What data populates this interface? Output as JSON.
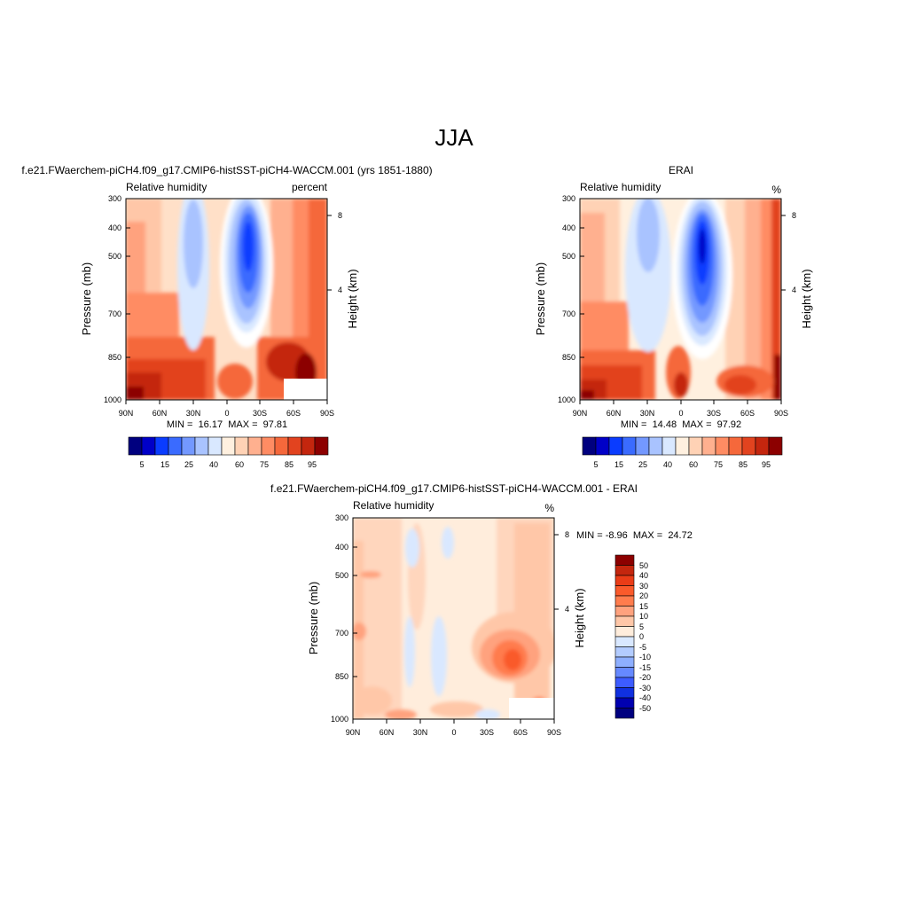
{
  "figure": {
    "title": "JJA"
  },
  "chart_data": [
    {
      "type": "heatmap",
      "title": "f.e21.FWaerchem-piCH4.f09_g17.CMIP6-histSST-piCH4-WACCM.001 (yrs 1851-1880)",
      "left_label": "Relative humidity",
      "units": "percent",
      "ylabel": "Pressure (mb)",
      "ylabel_right": "Height (km)",
      "x_ticks": [
        "90N",
        "60N",
        "30N",
        "0",
        "30S",
        "60S",
        "90S"
      ],
      "y_ticks": [
        "300",
        "400",
        "500",
        "700",
        "850",
        "1000"
      ],
      "y_right_ticks": [
        "8",
        "4"
      ],
      "xlim": [
        90,
        -90
      ],
      "ylim": [
        1000,
        300
      ],
      "stats": "MIN =  16.17  MAX =  97.81",
      "colorbar": {
        "orientation": "horizontal",
        "labels": [
          "5",
          "15",
          "25",
          "40",
          "60",
          "75",
          "85",
          "95"
        ],
        "colors": [
          "#00007f",
          "#0000c8",
          "#0a3cff",
          "#3a6bff",
          "#7398ff",
          "#a9c3ff",
          "#d9e8ff",
          "#fff0df",
          "#ffd2b5",
          "#ffb08f",
          "#ff8c63",
          "#f5683b",
          "#e2431f",
          "#c4260e",
          "#8c0000"
        ]
      }
    },
    {
      "type": "heatmap",
      "title": "ERAI",
      "left_label": "Relative humidity",
      "units": "%",
      "ylabel": "Pressure (mb)",
      "ylabel_right": "Height (km)",
      "x_ticks": [
        "90N",
        "60N",
        "30N",
        "0",
        "30S",
        "60S",
        "90S"
      ],
      "y_ticks": [
        "300",
        "400",
        "500",
        "700",
        "850",
        "1000"
      ],
      "y_right_ticks": [
        "8",
        "4"
      ],
      "xlim": [
        90,
        -90
      ],
      "ylim": [
        1000,
        300
      ],
      "stats": "MIN =  14.48  MAX =  97.92",
      "colorbar": {
        "orientation": "horizontal",
        "labels": [
          "5",
          "15",
          "25",
          "40",
          "60",
          "75",
          "85",
          "95"
        ],
        "colors": [
          "#00007f",
          "#0000c8",
          "#0a3cff",
          "#3a6bff",
          "#7398ff",
          "#a9c3ff",
          "#d9e8ff",
          "#fff0df",
          "#ffd2b5",
          "#ffb08f",
          "#ff8c63",
          "#f5683b",
          "#e2431f",
          "#c4260e",
          "#8c0000"
        ]
      }
    },
    {
      "type": "heatmap",
      "title": "f.e21.FWaerchem-piCH4.f09_g17.CMIP6-histSST-piCH4-WACCM.001 - ERAI",
      "left_label": "Relative humidity",
      "units": "%",
      "ylabel": "Pressure (mb)",
      "ylabel_right": "Height (km)",
      "x_ticks": [
        "90N",
        "60N",
        "30N",
        "0",
        "30S",
        "60S",
        "90S"
      ],
      "y_ticks": [
        "300",
        "400",
        "500",
        "700",
        "850",
        "1000"
      ],
      "y_right_ticks": [
        "8",
        "4"
      ],
      "xlim": [
        90,
        -90
      ],
      "ylim": [
        1000,
        300
      ],
      "stats": "MIN = -8.96  MAX =  24.72",
      "colorbar": {
        "orientation": "vertical",
        "labels": [
          "50",
          "40",
          "30",
          "20",
          "15",
          "10",
          "5",
          "0",
          "-5",
          "-10",
          "-15",
          "-20",
          "-30",
          "-40",
          "-50"
        ],
        "colors": [
          "#8c0000",
          "#c4260e",
          "#ea3c17",
          "#fa5a2b",
          "#ff7c4d",
          "#ffa27e",
          "#ffc7a8",
          "#ffeddc",
          "#d9e8ff",
          "#b3ccff",
          "#8eafff",
          "#6689ff",
          "#3d5cff",
          "#1030e0",
          "#0000b0",
          "#00007f"
        ]
      }
    }
  ]
}
